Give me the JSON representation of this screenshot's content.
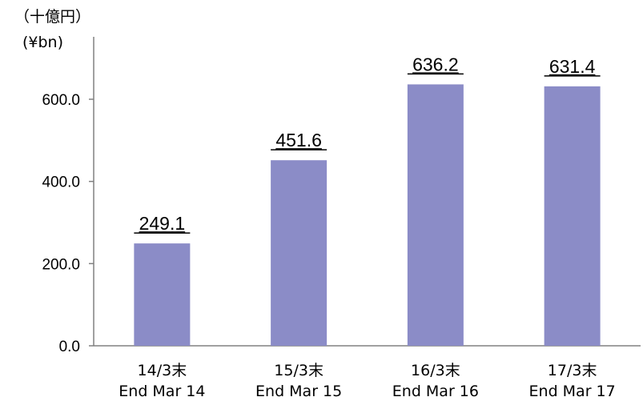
{
  "chart_data": {
    "type": "bar",
    "unit_label_ja": "（十億円）",
    "unit_label_en": "(¥bn)",
    "categories": [
      {
        "ja": "14/3末",
        "en": "End Mar 14"
      },
      {
        "ja": "15/3末",
        "en": "End Mar 15"
      },
      {
        "ja": "16/3末",
        "en": "End Mar 16"
      },
      {
        "ja": "17/3末",
        "en": "End Mar 17"
      }
    ],
    "values": [
      249.1,
      451.6,
      636.2,
      631.4
    ],
    "data_labels": [
      "249.1",
      "451.6",
      "636.2",
      "631.4"
    ],
    "yticks": [
      "0.0",
      "200.0",
      "400.0",
      "600.0"
    ],
    "ylim": [
      0,
      700
    ],
    "grid": false,
    "legend": "none",
    "bar_color": "#8b8cc7",
    "axis_color": "#808080"
  }
}
